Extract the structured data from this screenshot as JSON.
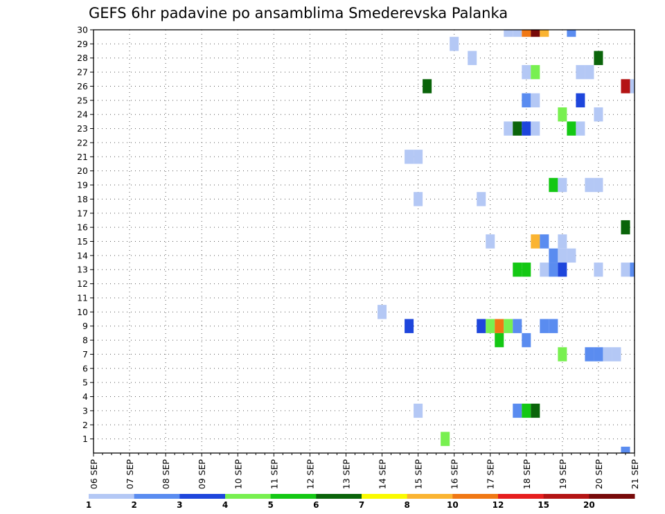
{
  "chart_data": {
    "type": "heatmap",
    "title": "GEFS 6hr padavine po ansamblima Smederevska Palanka",
    "x_tick_labels": [
      "06 SEP",
      "07 SEP",
      "08 SEP",
      "09 SEP",
      "10 SEP",
      "11 SEP",
      "12 SEP",
      "13 SEP",
      "14 SEP",
      "15 SEP",
      "16 SEP",
      "17 SEP",
      "18 SEP",
      "19 SEP",
      "20 SEP",
      "21 SEP"
    ],
    "y_tick_labels": [
      "1",
      "2",
      "3",
      "4",
      "5",
      "6",
      "7",
      "8",
      "9",
      "10",
      "11",
      "12",
      "13",
      "14",
      "15",
      "16",
      "17",
      "18",
      "19",
      "20",
      "21",
      "22",
      "23",
      "24",
      "25",
      "26",
      "27",
      "28",
      "29",
      "30"
    ],
    "x_unit": "6-hour step from 06 SEP 00z",
    "x_range": [
      0,
      60
    ],
    "y_range": [
      0,
      30
    ],
    "grid": true,
    "legend": {
      "position": "bottom",
      "labels": [
        "1",
        "2",
        "3",
        "4",
        "5",
        "6",
        "7",
        "8",
        "10",
        "12",
        "15",
        "20"
      ],
      "colors": [
        "#b4c8f5",
        "#5a8cf0",
        "#1e46dc",
        "#78f050",
        "#14c814",
        "#0a640a",
        "#fafa00",
        "#fab432",
        "#f07814",
        "#e61e1e",
        "#b41414",
        "#780a0a"
      ]
    },
    "cells": [
      {
        "m": 30,
        "t": 46,
        "v": 1
      },
      {
        "m": 30,
        "t": 47,
        "v": 1
      },
      {
        "m": 30,
        "t": 48,
        "v": 10
      },
      {
        "m": 30,
        "t": 49,
        "v": 20
      },
      {
        "m": 30,
        "t": 50,
        "v": 8
      },
      {
        "m": 30,
        "t": 53,
        "v": 2
      },
      {
        "m": 29,
        "t": 40,
        "v": 1
      },
      {
        "m": 28,
        "t": 42,
        "v": 1
      },
      {
        "m": 28,
        "t": 56,
        "v": 6
      },
      {
        "m": 27,
        "t": 48,
        "v": 1
      },
      {
        "m": 27,
        "t": 49,
        "v": 4
      },
      {
        "m": 27,
        "t": 54,
        "v": 1
      },
      {
        "m": 27,
        "t": 55,
        "v": 1
      },
      {
        "m": 26,
        "t": 37,
        "v": 6
      },
      {
        "m": 26,
        "t": 59,
        "v": 15
      },
      {
        "m": 26,
        "t": 60,
        "v": 1
      },
      {
        "m": 25,
        "t": 48,
        "v": 2
      },
      {
        "m": 25,
        "t": 49,
        "v": 1
      },
      {
        "m": 25,
        "t": 54,
        "v": 3
      },
      {
        "m": 24,
        "t": 52,
        "v": 4
      },
      {
        "m": 24,
        "t": 56,
        "v": 1
      },
      {
        "m": 23,
        "t": 46,
        "v": 1
      },
      {
        "m": 23,
        "t": 47,
        "v": 6
      },
      {
        "m": 23,
        "t": 48,
        "v": 3
      },
      {
        "m": 23,
        "t": 49,
        "v": 1
      },
      {
        "m": 23,
        "t": 53,
        "v": 5
      },
      {
        "m": 23,
        "t": 54,
        "v": 1
      },
      {
        "m": 21,
        "t": 35,
        "v": 1
      },
      {
        "m": 21,
        "t": 36,
        "v": 1
      },
      {
        "m": 19,
        "t": 51,
        "v": 5
      },
      {
        "m": 19,
        "t": 52,
        "v": 1
      },
      {
        "m": 19,
        "t": 55,
        "v": 1
      },
      {
        "m": 19,
        "t": 56,
        "v": 1
      },
      {
        "m": 18,
        "t": 36,
        "v": 1
      },
      {
        "m": 18,
        "t": 43,
        "v": 1
      },
      {
        "m": 16,
        "t": 59,
        "v": 6
      },
      {
        "m": 15,
        "t": 44,
        "v": 1
      },
      {
        "m": 15,
        "t": 49,
        "v": 8
      },
      {
        "m": 15,
        "t": 50,
        "v": 2
      },
      {
        "m": 15,
        "t": 52,
        "v": 1
      },
      {
        "m": 14,
        "t": 51,
        "v": 2
      },
      {
        "m": 14,
        "t": 52,
        "v": 1
      },
      {
        "m": 14,
        "t": 53,
        "v": 1
      },
      {
        "m": 13,
        "t": 47,
        "v": 5
      },
      {
        "m": 13,
        "t": 48,
        "v": 5
      },
      {
        "m": 13,
        "t": 50,
        "v": 1
      },
      {
        "m": 13,
        "t": 51,
        "v": 2
      },
      {
        "m": 13,
        "t": 52,
        "v": 3
      },
      {
        "m": 13,
        "t": 56,
        "v": 1
      },
      {
        "m": 13,
        "t": 59,
        "v": 1
      },
      {
        "m": 13,
        "t": 60,
        "v": 2
      },
      {
        "m": 10,
        "t": 32,
        "v": 1
      },
      {
        "m": 9,
        "t": 35,
        "v": 3
      },
      {
        "m": 9,
        "t": 43,
        "v": 3
      },
      {
        "m": 9,
        "t": 44,
        "v": 4
      },
      {
        "m": 9,
        "t": 45,
        "v": 10
      },
      {
        "m": 9,
        "t": 46,
        "v": 4
      },
      {
        "m": 9,
        "t": 47,
        "v": 2
      },
      {
        "m": 9,
        "t": 50,
        "v": 2
      },
      {
        "m": 9,
        "t": 51,
        "v": 2
      },
      {
        "m": 8,
        "t": 45,
        "v": 5
      },
      {
        "m": 8,
        "t": 48,
        "v": 2
      },
      {
        "m": 7,
        "t": 52,
        "v": 4
      },
      {
        "m": 7,
        "t": 55,
        "v": 2
      },
      {
        "m": 7,
        "t": 56,
        "v": 2
      },
      {
        "m": 7,
        "t": 57,
        "v": 1
      },
      {
        "m": 7,
        "t": 58,
        "v": 1
      },
      {
        "m": 3,
        "t": 36,
        "v": 1
      },
      {
        "m": 3,
        "t": 47,
        "v": 2
      },
      {
        "m": 3,
        "t": 48,
        "v": 5
      },
      {
        "m": 3,
        "t": 49,
        "v": 6
      },
      {
        "m": 1,
        "t": 39,
        "v": 4
      },
      {
        "m": 0,
        "t": 59,
        "v": 2
      }
    ]
  }
}
